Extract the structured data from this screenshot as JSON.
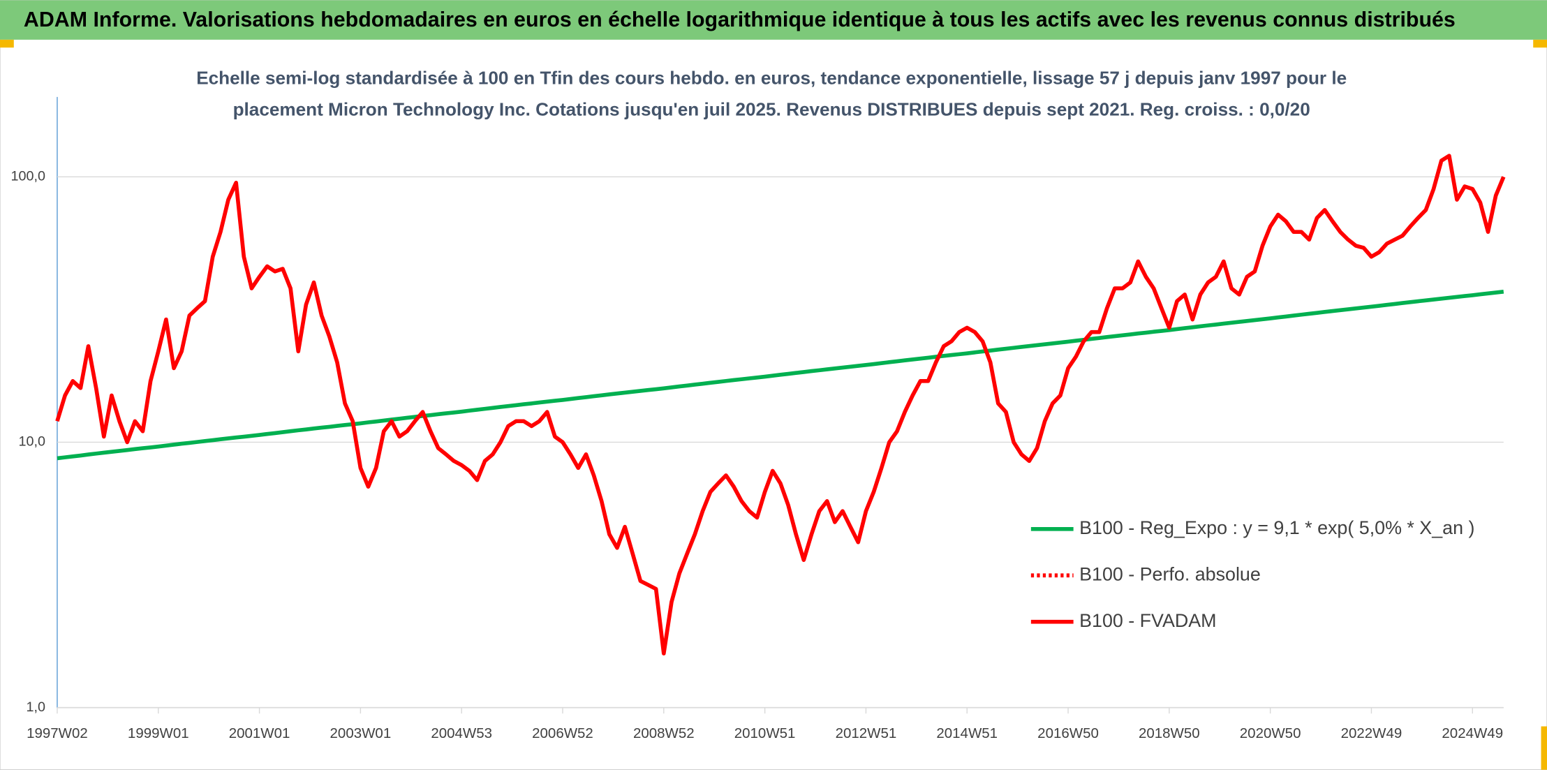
{
  "chart_data": {
    "type": "line",
    "title": "ADAM Informe. Valorisations hebdomadaires en euros en échelle logarithmique identique à tous les actifs avec les revenus connus distribués",
    "subtitle": [
      "Echelle semi-log standardisée à 100 en Tfin des cours hebdo. en euros, tendance exponentielle, lissage 57 j depuis janv 1997 pour le",
      "placement Micron Technology Inc. Cotations jusqu'en juil 2025. Revenus DISTRIBUES depuis sept 2021. Reg. croiss. : 0,0/20"
    ],
    "log_scale": true,
    "ylim": [
      1,
      200
    ],
    "yticks": [
      {
        "value": 1,
        "label": "1,0"
      },
      {
        "value": 10,
        "label": "10,0"
      },
      {
        "value": 100,
        "label": "100,0"
      }
    ],
    "grid": true,
    "legend": "right",
    "categories": [
      "1997W02",
      null,
      null,
      null,
      null,
      null,
      null,
      null,
      null,
      null,
      null,
      null,
      null,
      "1999W01",
      null,
      null,
      null,
      null,
      null,
      null,
      null,
      null,
      null,
      null,
      null,
      null,
      "2001W01",
      null,
      null,
      null,
      null,
      null,
      null,
      null,
      null,
      null,
      null,
      null,
      null,
      "2003W01",
      null,
      null,
      null,
      null,
      null,
      null,
      null,
      null,
      null,
      null,
      null,
      null,
      "2004W53",
      null,
      null,
      null,
      null,
      null,
      null,
      null,
      null,
      null,
      null,
      null,
      null,
      "2006W52",
      null,
      null,
      null,
      null,
      null,
      null,
      null,
      null,
      null,
      null,
      null,
      null,
      "2008W52",
      null,
      null,
      null,
      null,
      null,
      null,
      null,
      null,
      null,
      null,
      null,
      null,
      "2010W51",
      null,
      null,
      null,
      null,
      null,
      null,
      null,
      null,
      null,
      null,
      null,
      null,
      "2012W51",
      null,
      null,
      null,
      null,
      null,
      null,
      null,
      null,
      null,
      null,
      null,
      null,
      "2014W51",
      null,
      null,
      null,
      null,
      null,
      null,
      null,
      null,
      null,
      null,
      null,
      null,
      "2016W50",
      null,
      null,
      null,
      null,
      null,
      null,
      null,
      null,
      null,
      null,
      null,
      null,
      "2018W50",
      null,
      null,
      null,
      null,
      null,
      null,
      null,
      null,
      null,
      null,
      null,
      null,
      "2020W50",
      null,
      null,
      null,
      null,
      null,
      null,
      null,
      null,
      null,
      null,
      null,
      null,
      "2022W49",
      null,
      null,
      null,
      null,
      null,
      null,
      null,
      null,
      null,
      null,
      null,
      null,
      "2024W49",
      null,
      null,
      null,
      null
    ],
    "series": [
      {
        "name": "B100 - Reg_Expo : y = 9,1 * exp( 5,0% *  X_an )",
        "color": "#00b050",
        "style": "solid",
        "values": [
          8.7,
          8.77,
          8.84,
          8.91,
          8.99,
          9.06,
          9.13,
          9.2,
          9.27,
          9.34,
          9.42,
          9.49,
          9.56,
          9.63,
          9.71,
          9.79,
          9.87,
          9.94,
          10.02,
          10.1,
          10.18,
          10.26,
          10.34,
          10.42,
          10.49,
          10.57,
          10.65,
          10.74,
          10.82,
          10.91,
          11,
          11.09,
          11.17,
          11.26,
          11.35,
          11.43,
          11.52,
          11.61,
          11.69,
          11.78,
          11.88,
          11.97,
          12.07,
          12.17,
          12.26,
          12.36,
          12.46,
          12.56,
          12.65,
          12.75,
          12.85,
          12.94,
          13.04,
          13.15,
          13.25,
          13.36,
          13.47,
          13.58,
          13.68,
          13.79,
          13.9,
          14.0,
          14.11,
          14.22,
          14.33,
          14.43,
          14.55,
          14.67,
          14.78,
          14.9,
          15.02,
          15.14,
          15.26,
          15.37,
          15.49,
          15.61,
          15.73,
          15.84,
          15.96,
          16.09,
          16.22,
          16.35,
          16.48,
          16.61,
          16.75,
          16.88,
          17.01,
          17.14,
          17.27,
          17.4,
          17.53,
          17.66,
          17.8,
          17.95,
          18.09,
          18.24,
          18.38,
          18.53,
          18.67,
          18.82,
          18.96,
          19.11,
          19.25,
          19.4,
          19.54,
          19.7,
          19.86,
          20.02,
          20.18,
          20.34,
          20.5,
          20.66,
          20.82,
          20.98,
          21.14,
          21.3,
          21.46,
          21.62,
          21.8,
          21.97,
          22.15,
          22.33,
          22.5,
          22.68,
          22.86,
          23.04,
          23.21,
          23.39,
          23.57,
          23.74,
          23.92,
          24.12,
          24.31,
          24.51,
          24.7,
          24.9,
          25.09,
          25.29,
          25.48,
          25.68,
          25.87,
          26.07,
          26.26,
          26.46,
          26.68,
          26.9,
          27.11,
          27.33,
          27.55,
          27.76,
          27.98,
          28.2,
          28.41,
          28.63,
          28.85,
          29.06,
          29.28,
          29.52,
          29.76,
          30.0,
          30.24,
          30.48,
          30.72,
          30.96,
          31.2,
          31.44,
          31.68,
          31.92,
          32.16,
          32.4,
          32.66,
          32.92,
          33.18,
          33.45,
          33.71,
          33.97,
          34.23,
          34.49,
          34.75,
          35.01,
          35.28,
          35.54,
          35.8,
          36.08,
          36.36,
          36.64,
          36.92
        ]
      },
      {
        "name": "B100 - Perfo. absolue",
        "color": "#ff0000",
        "style": "dotted",
        "values": [
          null,
          null,
          null,
          null,
          null,
          null,
          null,
          null,
          null,
          null,
          null,
          null,
          null,
          null,
          null,
          null,
          null,
          null,
          null,
          null,
          null,
          null,
          null,
          null,
          null,
          null,
          null,
          null,
          null,
          null,
          null,
          null,
          null,
          null,
          null,
          null,
          null,
          null,
          null,
          null,
          null,
          null,
          null,
          null,
          null,
          null,
          null,
          null,
          null,
          null,
          null,
          null,
          null,
          null,
          null,
          null,
          null,
          null,
          null,
          null,
          null,
          null,
          null,
          null,
          null,
          null,
          null,
          null,
          null,
          null,
          null,
          null,
          null,
          null,
          null,
          null,
          null,
          null,
          null,
          null,
          null,
          null,
          null,
          null,
          null,
          null,
          null,
          null,
          null,
          null,
          null,
          null,
          null,
          null,
          null,
          null,
          null,
          null,
          null,
          null,
          null,
          null,
          null,
          null,
          null,
          null,
          null,
          null,
          null,
          null,
          null,
          null,
          null,
          null,
          null,
          null,
          null,
          null,
          null,
          null,
          null,
          null,
          null,
          null,
          null,
          null,
          null,
          null,
          null,
          null,
          null,
          null,
          null,
          null,
          null,
          null,
          null,
          null,
          null,
          null,
          null,
          null,
          null,
          null,
          null,
          null,
          null,
          null,
          null,
          null,
          null,
          null,
          null,
          null,
          null,
          null,
          null,
          null,
          null,
          null,
          null,
          null,
          null,
          null,
          null,
          null,
          null,
          null,
          null,
          null,
          null,
          null,
          null,
          null,
          null,
          null,
          null,
          null,
          null,
          null,
          null,
          null,
          null,
          null,
          null,
          null,
          null
        ]
      },
      {
        "name": "B100 - FVADAM",
        "color": "#ff0000",
        "style": "solid",
        "values": [
          12,
          15,
          17,
          16,
          23,
          16,
          10.5,
          15,
          12,
          10,
          12,
          11,
          17,
          22,
          29,
          19,
          22,
          30,
          32,
          34,
          50,
          62,
          82,
          95,
          50,
          38,
          42,
          46,
          44,
          45,
          38,
          22,
          33,
          40,
          30,
          25,
          20,
          14,
          12,
          8,
          6.8,
          8,
          11,
          12,
          10.5,
          11,
          12,
          13,
          11,
          9.5,
          9,
          8.5,
          8.2,
          7.8,
          7.2,
          8.5,
          9,
          10,
          11.5,
          12,
          12,
          11.5,
          12,
          13,
          10.5,
          10,
          9,
          8,
          9,
          7.5,
          6,
          4.5,
          4,
          4.8,
          3.8,
          3,
          2.9,
          2.8,
          1.6,
          2.5,
          3.2,
          3.8,
          4.5,
          5.5,
          6.5,
          7,
          7.5,
          6.8,
          6,
          5.5,
          5.2,
          6.5,
          7.8,
          7,
          5.8,
          4.5,
          3.6,
          4.5,
          5.5,
          6,
          5,
          5.5,
          4.8,
          4.2,
          5.5,
          6.5,
          8,
          10,
          11,
          13,
          15,
          17,
          17,
          20,
          23,
          24,
          26,
          27,
          26,
          24,
          20,
          14,
          13,
          10,
          9,
          8.5,
          9.5,
          12,
          14,
          15,
          19,
          21,
          24,
          26,
          26,
          32,
          38,
          38,
          40,
          48,
          42,
          38,
          32,
          27,
          34,
          36,
          29,
          36,
          40,
          42,
          48,
          38,
          36,
          42,
          44,
          55,
          65,
          72,
          68,
          62,
          62,
          58,
          70,
          75,
          68,
          62,
          58,
          55,
          54,
          50,
          52,
          56,
          58,
          60,
          65,
          70,
          75,
          90,
          115,
          120,
          82,
          92,
          90,
          80,
          62,
          85,
          100
        ]
      }
    ]
  }
}
